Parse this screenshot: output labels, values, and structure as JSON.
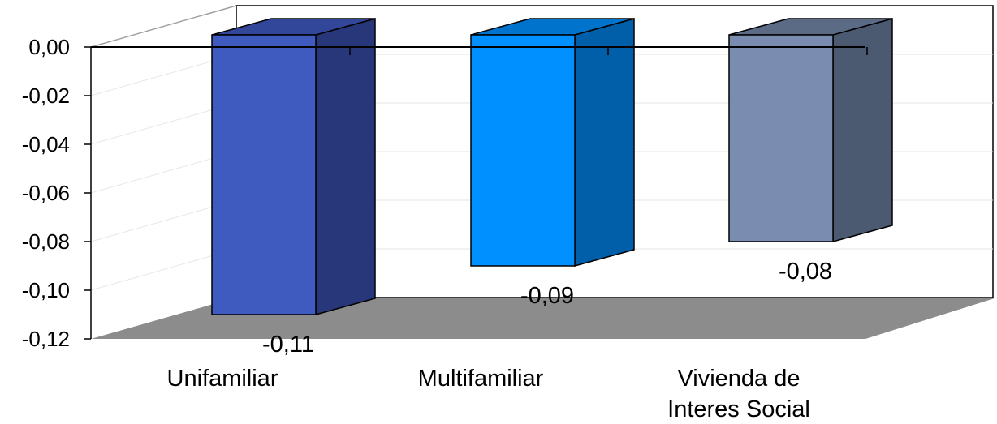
{
  "chart_data": {
    "type": "bar",
    "three_d": true,
    "categories": [
      [
        "Unifamiliar"
      ],
      [
        "Multifamiliar"
      ],
      [
        "Vivienda de",
        "Interes Social"
      ]
    ],
    "values": [
      -0.11,
      -0.09,
      -0.08
    ],
    "value_labels": [
      "-0,11",
      "-0,09",
      "-0,08"
    ],
    "y_ticks": [
      0.0,
      -0.02,
      -0.04,
      -0.06,
      -0.08,
      -0.1,
      -0.12
    ],
    "y_tick_labels": [
      "0,00",
      "-0,02",
      "-0,04",
      "-0,06",
      "-0,08",
      "-0,10",
      "-0,12"
    ],
    "ylim": [
      -0.12,
      0.0
    ],
    "title": "",
    "xlabel": "",
    "ylabel": "",
    "grid": true,
    "legend": "none",
    "colors": {
      "bar_fronts": [
        "#3f5bbf",
        "#0090ff",
        "#7a8db0"
      ],
      "bar_sides": [
        "#28377a",
        "#005fa8",
        "#4b5a70"
      ],
      "bar_tops": [
        "#32479a",
        "#0073cc",
        "#5b6b86"
      ],
      "floor": "#8c8c8c",
      "gridline": "#e6e6e6",
      "axis": "#000000"
    }
  }
}
